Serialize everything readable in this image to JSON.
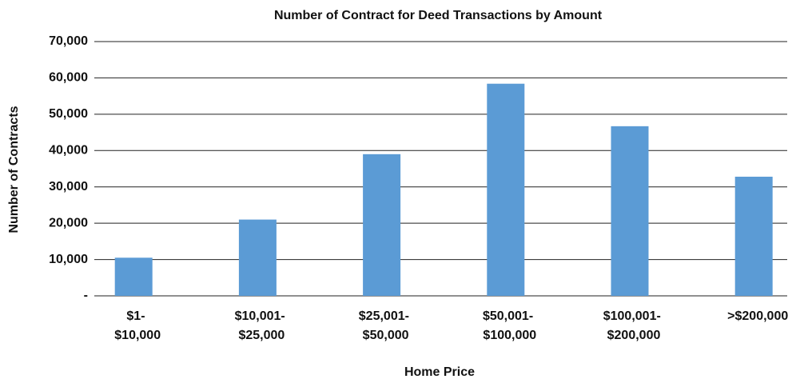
{
  "chart_data": {
    "type": "bar",
    "title": "Number of Contract for Deed Transactions by Amount",
    "x_label": "Home Price",
    "y_label": "Number of Contracts",
    "categories": [
      "$1- $10,000",
      "$10,001- $25,000",
      "$25,001- $50,000",
      "$50,001- $100,000",
      "$100,001- $200,000",
      ">$200,000"
    ],
    "values": [
      10500,
      21000,
      39000,
      58400,
      46700,
      32800
    ],
    "color": "#5b9bd5",
    "ylim": [
      0,
      70000
    ],
    "yticks": [
      {
        "value": 0,
        "label": "-"
      },
      {
        "value": 10000,
        "label": "10,000"
      },
      {
        "value": 20000,
        "label": "20,000"
      },
      {
        "value": 30000,
        "label": "30,000"
      },
      {
        "value": 40000,
        "label": "40,000"
      },
      {
        "value": 50000,
        "label": "50,000"
      },
      {
        "value": 60000,
        "label": "60,000"
      },
      {
        "value": 70000,
        "label": "70,000"
      }
    ],
    "grid": true
  }
}
